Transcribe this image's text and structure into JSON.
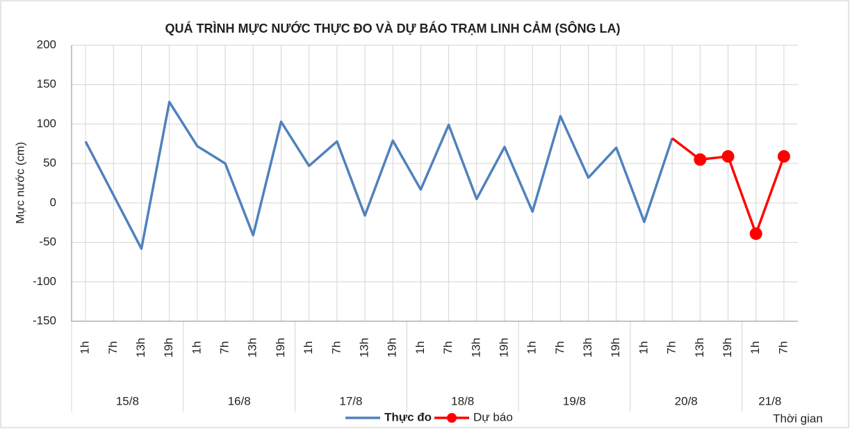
{
  "chart_data": {
    "type": "line",
    "title": "QUÁ TRÌNH MỰC NƯỚC THỰC ĐO VÀ DỰ BÁO TRẠM LINH CẢM (SÔNG LA)",
    "y_label": "Mực nước (cm)",
    "x_label": "Thời gian",
    "categories": [
      [
        "15/8",
        "1h"
      ],
      [
        "15/8",
        "7h"
      ],
      [
        "15/8",
        "13h"
      ],
      [
        "15/8",
        "19h"
      ],
      [
        "16/8",
        "1h"
      ],
      [
        "16/8",
        "7h"
      ],
      [
        "16/8",
        "13h"
      ],
      [
        "16/8",
        "19h"
      ],
      [
        "17/8",
        "1h"
      ],
      [
        "17/8",
        "7h"
      ],
      [
        "17/8",
        "13h"
      ],
      [
        "17/8",
        "19h"
      ],
      [
        "18/8",
        "1h"
      ],
      [
        "18/8",
        "7h"
      ],
      [
        "18/8",
        "13h"
      ],
      [
        "18/8",
        "19h"
      ],
      [
        "19/8",
        "1h"
      ],
      [
        "19/8",
        "7h"
      ],
      [
        "19/8",
        "13h"
      ],
      [
        "19/8",
        "19h"
      ],
      [
        "20/8",
        "1h"
      ],
      [
        "20/8",
        "7h"
      ],
      [
        "20/8",
        "13h"
      ],
      [
        "20/8",
        "19h"
      ],
      [
        "21/8",
        "1h"
      ],
      [
        "21/8",
        "7h"
      ]
    ],
    "series": [
      {
        "name": "Thực đo",
        "color": "#4f81bd",
        "marker": false,
        "values": [
          78,
          10,
          -58,
          128,
          72,
          50,
          -41,
          103,
          47,
          78,
          -16,
          79,
          17,
          99,
          5,
          71,
          -11,
          110,
          32,
          70,
          -24,
          82,
          null,
          null,
          null,
          null
        ]
      },
      {
        "name": "Dự báo",
        "color": "#ff0000",
        "marker": true,
        "values": [
          null,
          null,
          null,
          null,
          null,
          null,
          null,
          null,
          null,
          null,
          null,
          null,
          null,
          null,
          null,
          null,
          null,
          null,
          null,
          null,
          null,
          82,
          55,
          59,
          -39,
          59
        ]
      }
    ],
    "ylim": [
      -150,
      200
    ],
    "yticks": [
      -150,
      -100,
      -50,
      0,
      50,
      100,
      150,
      200
    ],
    "grid": true,
    "legend": "bottom"
  }
}
